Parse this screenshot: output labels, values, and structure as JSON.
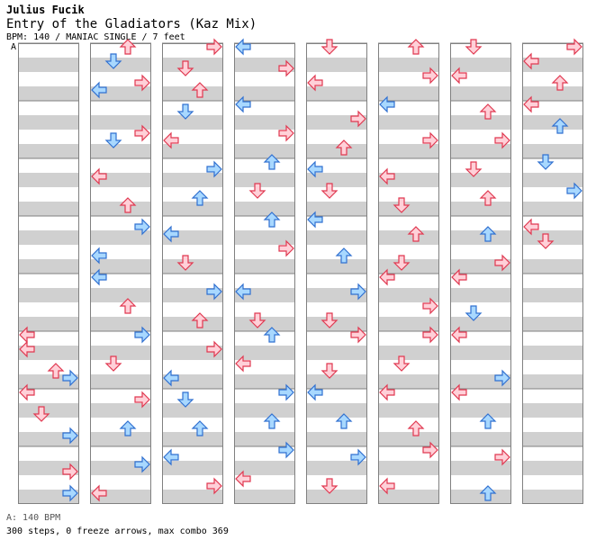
{
  "header": {
    "artist": "Julius Fucik",
    "title": "Entry of the Gladiators (Kaz Mix)",
    "info": "BPM: 140 / MANIAC SINGLE / 7 feet",
    "section_marker": "A"
  },
  "footer": {
    "bpm": "A: 140 BPM",
    "stats": "300 steps, 0 freeze arrows, max combo 369"
  },
  "colors": {
    "red_arrow_fill": "#ffd0d8",
    "red_arrow_stroke": "#e03850",
    "blue_arrow_fill": "#a8d8ff",
    "blue_arrow_stroke": "#3070d0",
    "stripe_gray": "#d0d0d0",
    "column_border": "#808080"
  },
  "chart_data": {
    "type": "step-chart",
    "columns": 8,
    "measures_per_column": 8,
    "lanes": [
      "left",
      "down",
      "up",
      "right"
    ],
    "total_steps": 300,
    "freeze_arrows": 0,
    "max_combo": 369,
    "notes_sample": [
      {
        "col": 0,
        "measure": 5,
        "beat": 0,
        "lane": "left",
        "color": "red"
      },
      {
        "col": 0,
        "measure": 5,
        "beat": 2,
        "lane": "left",
        "color": "red"
      },
      {
        "col": 0,
        "measure": 5,
        "beat": 5,
        "lane": "up",
        "color": "red"
      },
      {
        "col": 0,
        "measure": 5,
        "beat": 6,
        "lane": "right",
        "color": "blue"
      },
      {
        "col": 0,
        "measure": 6,
        "beat": 0,
        "lane": "left",
        "color": "red"
      },
      {
        "col": 0,
        "measure": 6,
        "beat": 3,
        "lane": "down",
        "color": "red"
      },
      {
        "col": 0,
        "measure": 6,
        "beat": 6,
        "lane": "right",
        "color": "blue"
      },
      {
        "col": 0,
        "measure": 7,
        "beat": 3,
        "lane": "right",
        "color": "red"
      },
      {
        "col": 0,
        "measure": 7,
        "beat": 6,
        "lane": "right",
        "color": "blue"
      },
      {
        "col": 1,
        "measure": 0,
        "beat": 0,
        "lane": "up",
        "color": "red"
      },
      {
        "col": 1,
        "measure": 0,
        "beat": 2,
        "lane": "down",
        "color": "blue"
      },
      {
        "col": 1,
        "measure": 0,
        "beat": 5,
        "lane": "right",
        "color": "red"
      },
      {
        "col": 1,
        "measure": 0,
        "beat": 6,
        "lane": "left",
        "color": "blue"
      },
      {
        "col": 1,
        "measure": 1,
        "beat": 4,
        "lane": "right",
        "color": "red"
      },
      {
        "col": 1,
        "measure": 1,
        "beat": 5,
        "lane": "down",
        "color": "blue"
      },
      {
        "col": 1,
        "measure": 2,
        "beat": 2,
        "lane": "left",
        "color": "red"
      },
      {
        "col": 1,
        "measure": 2,
        "beat": 6,
        "lane": "up",
        "color": "red"
      },
      {
        "col": 1,
        "measure": 3,
        "beat": 1,
        "lane": "right",
        "color": "blue"
      },
      {
        "col": 1,
        "measure": 3,
        "beat": 5,
        "lane": "left",
        "color": "blue"
      },
      {
        "col": 1,
        "measure": 4,
        "beat": 0,
        "lane": "left",
        "color": "blue"
      },
      {
        "col": 1,
        "measure": 4,
        "beat": 4,
        "lane": "up",
        "color": "red"
      },
      {
        "col": 1,
        "measure": 5,
        "beat": 0,
        "lane": "right",
        "color": "blue"
      },
      {
        "col": 1,
        "measure": 5,
        "beat": 4,
        "lane": "down",
        "color": "red"
      },
      {
        "col": 1,
        "measure": 6,
        "beat": 1,
        "lane": "right",
        "color": "red"
      },
      {
        "col": 1,
        "measure": 6,
        "beat": 5,
        "lane": "up",
        "color": "blue"
      },
      {
        "col": 1,
        "measure": 7,
        "beat": 2,
        "lane": "right",
        "color": "blue"
      },
      {
        "col": 1,
        "measure": 7,
        "beat": 6,
        "lane": "left",
        "color": "red"
      },
      {
        "col": 2,
        "measure": 0,
        "beat": 0,
        "lane": "right",
        "color": "red"
      },
      {
        "col": 2,
        "measure": 0,
        "beat": 3,
        "lane": "down",
        "color": "red"
      },
      {
        "col": 2,
        "measure": 0,
        "beat": 6,
        "lane": "up",
        "color": "red"
      },
      {
        "col": 2,
        "measure": 1,
        "beat": 1,
        "lane": "down",
        "color": "blue"
      },
      {
        "col": 2,
        "measure": 1,
        "beat": 5,
        "lane": "left",
        "color": "red"
      },
      {
        "col": 2,
        "measure": 2,
        "beat": 1,
        "lane": "right",
        "color": "blue"
      },
      {
        "col": 2,
        "measure": 2,
        "beat": 5,
        "lane": "up",
        "color": "blue"
      },
      {
        "col": 2,
        "measure": 3,
        "beat": 2,
        "lane": "left",
        "color": "blue"
      },
      {
        "col": 2,
        "measure": 3,
        "beat": 6,
        "lane": "down",
        "color": "red"
      },
      {
        "col": 2,
        "measure": 4,
        "beat": 2,
        "lane": "right",
        "color": "blue"
      },
      {
        "col": 2,
        "measure": 4,
        "beat": 6,
        "lane": "up",
        "color": "red"
      },
      {
        "col": 2,
        "measure": 5,
        "beat": 2,
        "lane": "right",
        "color": "red"
      },
      {
        "col": 2,
        "measure": 5,
        "beat": 6,
        "lane": "left",
        "color": "blue"
      },
      {
        "col": 2,
        "measure": 6,
        "beat": 1,
        "lane": "down",
        "color": "blue"
      },
      {
        "col": 2,
        "measure": 6,
        "beat": 5,
        "lane": "up",
        "color": "blue"
      },
      {
        "col": 2,
        "measure": 7,
        "beat": 1,
        "lane": "left",
        "color": "blue"
      },
      {
        "col": 2,
        "measure": 7,
        "beat": 5,
        "lane": "right",
        "color": "red"
      },
      {
        "col": 3,
        "measure": 0,
        "beat": 0,
        "lane": "left",
        "color": "blue"
      },
      {
        "col": 3,
        "measure": 0,
        "beat": 3,
        "lane": "right",
        "color": "red"
      },
      {
        "col": 3,
        "measure": 1,
        "beat": 0,
        "lane": "left",
        "color": "blue"
      },
      {
        "col": 3,
        "measure": 1,
        "beat": 4,
        "lane": "right",
        "color": "red"
      },
      {
        "col": 3,
        "measure": 2,
        "beat": 0,
        "lane": "up",
        "color": "blue"
      },
      {
        "col": 3,
        "measure": 2,
        "beat": 4,
        "lane": "down",
        "color": "red"
      },
      {
        "col": 3,
        "measure": 3,
        "beat": 0,
        "lane": "up",
        "color": "blue"
      },
      {
        "col": 3,
        "measure": 3,
        "beat": 4,
        "lane": "right",
        "color": "red"
      },
      {
        "col": 3,
        "measure": 4,
        "beat": 2,
        "lane": "left",
        "color": "blue"
      },
      {
        "col": 3,
        "measure": 4,
        "beat": 6,
        "lane": "down",
        "color": "red"
      },
      {
        "col": 3,
        "measure": 5,
        "beat": 0,
        "lane": "up",
        "color": "blue"
      },
      {
        "col": 3,
        "measure": 5,
        "beat": 4,
        "lane": "left",
        "color": "red"
      },
      {
        "col": 3,
        "measure": 6,
        "beat": 0,
        "lane": "right",
        "color": "blue"
      },
      {
        "col": 3,
        "measure": 6,
        "beat": 4,
        "lane": "up",
        "color": "blue"
      },
      {
        "col": 3,
        "measure": 7,
        "beat": 0,
        "lane": "right",
        "color": "blue"
      },
      {
        "col": 3,
        "measure": 7,
        "beat": 4,
        "lane": "left",
        "color": "red"
      },
      {
        "col": 4,
        "measure": 0,
        "beat": 0,
        "lane": "down",
        "color": "red"
      },
      {
        "col": 4,
        "measure": 0,
        "beat": 5,
        "lane": "left",
        "color": "red"
      },
      {
        "col": 4,
        "measure": 1,
        "beat": 2,
        "lane": "right",
        "color": "red"
      },
      {
        "col": 4,
        "measure": 1,
        "beat": 6,
        "lane": "up",
        "color": "red"
      },
      {
        "col": 4,
        "measure": 2,
        "beat": 1,
        "lane": "left",
        "color": "blue"
      },
      {
        "col": 4,
        "measure": 2,
        "beat": 4,
        "lane": "down",
        "color": "red"
      },
      {
        "col": 4,
        "measure": 3,
        "beat": 0,
        "lane": "left",
        "color": "blue"
      },
      {
        "col": 4,
        "measure": 3,
        "beat": 5,
        "lane": "up",
        "color": "blue"
      },
      {
        "col": 4,
        "measure": 4,
        "beat": 2,
        "lane": "right",
        "color": "blue"
      },
      {
        "col": 4,
        "measure": 4,
        "beat": 6,
        "lane": "down",
        "color": "red"
      },
      {
        "col": 4,
        "measure": 5,
        "beat": 0,
        "lane": "right",
        "color": "red"
      },
      {
        "col": 4,
        "measure": 5,
        "beat": 5,
        "lane": "down",
        "color": "red"
      },
      {
        "col": 4,
        "measure": 6,
        "beat": 0,
        "lane": "left",
        "color": "blue"
      },
      {
        "col": 4,
        "measure": 6,
        "beat": 4,
        "lane": "up",
        "color": "blue"
      },
      {
        "col": 4,
        "measure": 7,
        "beat": 1,
        "lane": "right",
        "color": "blue"
      },
      {
        "col": 4,
        "measure": 7,
        "beat": 5,
        "lane": "down",
        "color": "red"
      },
      {
        "col": 5,
        "measure": 0,
        "beat": 0,
        "lane": "up",
        "color": "red"
      },
      {
        "col": 5,
        "measure": 0,
        "beat": 4,
        "lane": "right",
        "color": "red"
      },
      {
        "col": 5,
        "measure": 1,
        "beat": 0,
        "lane": "left",
        "color": "blue"
      },
      {
        "col": 5,
        "measure": 1,
        "beat": 5,
        "lane": "right",
        "color": "red"
      },
      {
        "col": 5,
        "measure": 2,
        "beat": 2,
        "lane": "left",
        "color": "red"
      },
      {
        "col": 5,
        "measure": 2,
        "beat": 6,
        "lane": "down",
        "color": "red"
      },
      {
        "col": 5,
        "measure": 3,
        "beat": 2,
        "lane": "up",
        "color": "red"
      },
      {
        "col": 5,
        "measure": 3,
        "beat": 6,
        "lane": "down",
        "color": "red"
      },
      {
        "col": 5,
        "measure": 4,
        "beat": 0,
        "lane": "left",
        "color": "red"
      },
      {
        "col": 5,
        "measure": 4,
        "beat": 4,
        "lane": "right",
        "color": "red"
      },
      {
        "col": 5,
        "measure": 5,
        "beat": 0,
        "lane": "right",
        "color": "red"
      },
      {
        "col": 5,
        "measure": 5,
        "beat": 4,
        "lane": "down",
        "color": "red"
      },
      {
        "col": 5,
        "measure": 6,
        "beat": 0,
        "lane": "left",
        "color": "red"
      },
      {
        "col": 5,
        "measure": 6,
        "beat": 5,
        "lane": "up",
        "color": "red"
      },
      {
        "col": 5,
        "measure": 7,
        "beat": 0,
        "lane": "right",
        "color": "red"
      },
      {
        "col": 5,
        "measure": 7,
        "beat": 5,
        "lane": "left",
        "color": "red"
      },
      {
        "col": 6,
        "measure": 0,
        "beat": 0,
        "lane": "down",
        "color": "red"
      },
      {
        "col": 6,
        "measure": 0,
        "beat": 4,
        "lane": "left",
        "color": "red"
      },
      {
        "col": 6,
        "measure": 1,
        "beat": 1,
        "lane": "up",
        "color": "red"
      },
      {
        "col": 6,
        "measure": 1,
        "beat": 5,
        "lane": "right",
        "color": "red"
      },
      {
        "col": 6,
        "measure": 2,
        "beat": 1,
        "lane": "down",
        "color": "red"
      },
      {
        "col": 6,
        "measure": 2,
        "beat": 5,
        "lane": "up",
        "color": "red"
      },
      {
        "col": 6,
        "measure": 3,
        "beat": 2,
        "lane": "up",
        "color": "blue"
      },
      {
        "col": 6,
        "measure": 3,
        "beat": 6,
        "lane": "right",
        "color": "red"
      },
      {
        "col": 6,
        "measure": 4,
        "beat": 0,
        "lane": "left",
        "color": "red"
      },
      {
        "col": 6,
        "measure": 4,
        "beat": 5,
        "lane": "down",
        "color": "blue"
      },
      {
        "col": 6,
        "measure": 5,
        "beat": 0,
        "lane": "left",
        "color": "red"
      },
      {
        "col": 6,
        "measure": 5,
        "beat": 6,
        "lane": "right",
        "color": "blue"
      },
      {
        "col": 6,
        "measure": 6,
        "beat": 0,
        "lane": "left",
        "color": "red"
      },
      {
        "col": 6,
        "measure": 6,
        "beat": 4,
        "lane": "up",
        "color": "blue"
      },
      {
        "col": 6,
        "measure": 7,
        "beat": 1,
        "lane": "right",
        "color": "red"
      },
      {
        "col": 6,
        "measure": 7,
        "beat": 6,
        "lane": "up",
        "color": "blue"
      },
      {
        "col": 7,
        "measure": 0,
        "beat": 0,
        "lane": "right",
        "color": "red"
      },
      {
        "col": 7,
        "measure": 0,
        "beat": 2,
        "lane": "left",
        "color": "red"
      },
      {
        "col": 7,
        "measure": 0,
        "beat": 5,
        "lane": "up",
        "color": "red"
      },
      {
        "col": 7,
        "measure": 1,
        "beat": 0,
        "lane": "left",
        "color": "red"
      },
      {
        "col": 7,
        "measure": 1,
        "beat": 3,
        "lane": "up",
        "color": "blue"
      },
      {
        "col": 7,
        "measure": 2,
        "beat": 0,
        "lane": "down",
        "color": "blue"
      },
      {
        "col": 7,
        "measure": 2,
        "beat": 4,
        "lane": "right",
        "color": "blue"
      },
      {
        "col": 7,
        "measure": 3,
        "beat": 1,
        "lane": "left",
        "color": "red"
      },
      {
        "col": 7,
        "measure": 3,
        "beat": 3,
        "lane": "down",
        "color": "red"
      }
    ]
  }
}
